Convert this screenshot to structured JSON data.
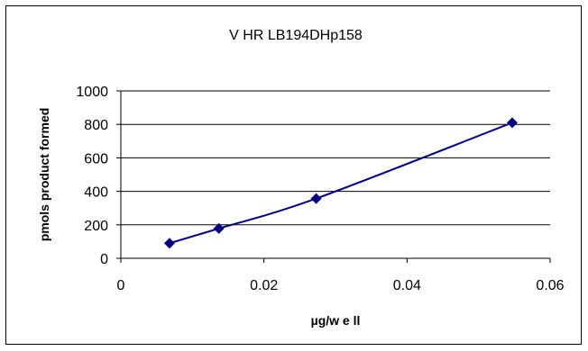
{
  "chart_data": {
    "type": "line",
    "title": "V HR LB194DHp158",
    "xlabel": "µg/w e ll",
    "ylabel": "pmols product formed",
    "xlim": [
      0,
      0.06
    ],
    "ylim": [
      0,
      1000
    ],
    "x_ticks": [
      "0",
      "0.02",
      "0.04",
      "0.06"
    ],
    "y_ticks": [
      "0",
      "200",
      "400",
      "600",
      "800",
      "1000"
    ],
    "grid": "horizontal",
    "legend": "none",
    "series": [
      {
        "x": [
          0.0068,
          0.0137,
          0.0273,
          0.0547
        ],
        "values": [
          90,
          178,
          357,
          810
        ],
        "color": "#000080"
      }
    ]
  }
}
